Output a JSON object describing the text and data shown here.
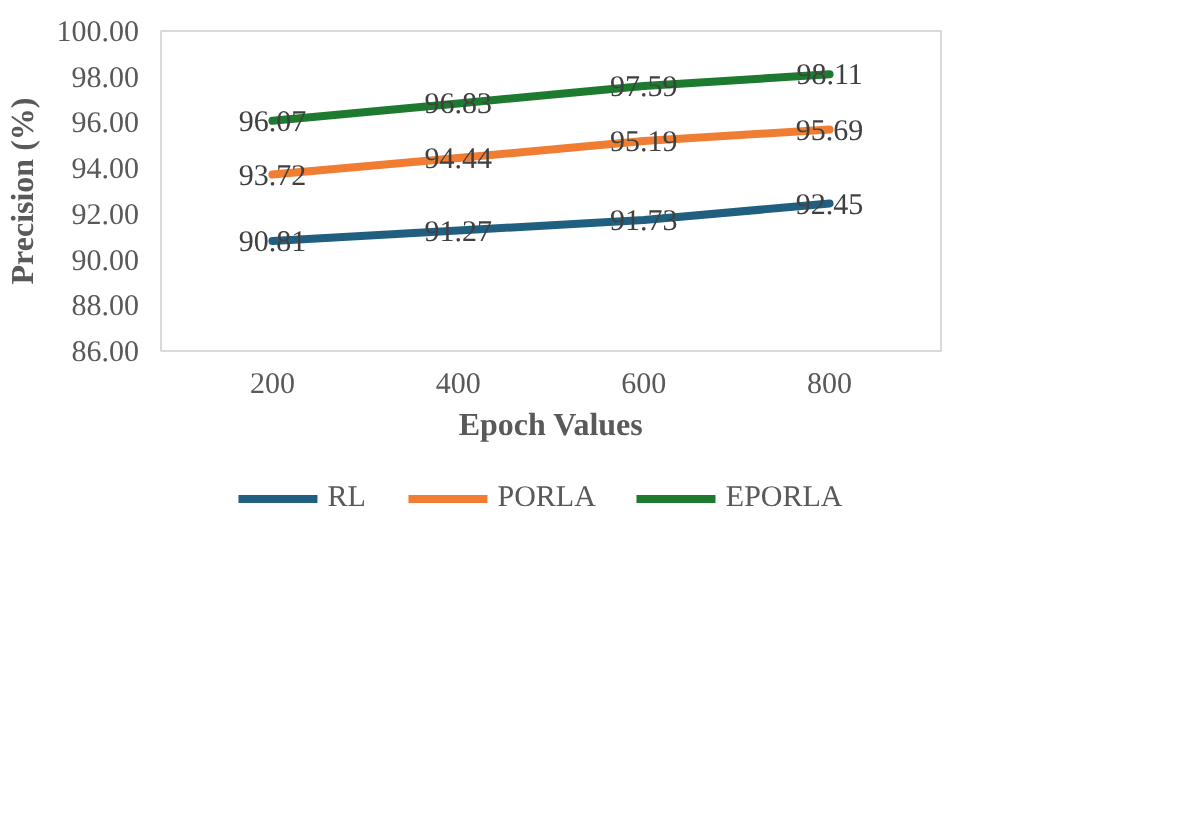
{
  "chart_data": {
    "type": "line",
    "ylabel": "Precision (%)",
    "xlabel": "Epoch Values",
    "categories": [
      "200",
      "400",
      "600",
      "800"
    ],
    "series": [
      {
        "name": "RL",
        "color": "#215f80",
        "values": [
          90.81,
          91.27,
          91.73,
          92.45
        ]
      },
      {
        "name": "PORLA",
        "color": "#f07d32",
        "values": [
          93.72,
          94.44,
          95.19,
          95.69
        ]
      },
      {
        "name": "EPORLA",
        "color": "#1e7a2e",
        "values": [
          96.07,
          96.83,
          97.59,
          98.11
        ]
      }
    ],
    "ylim": [
      86,
      100
    ],
    "yticks": [
      {
        "value": 86,
        "label": "86.00"
      },
      {
        "value": 88,
        "label": "88.00"
      },
      {
        "value": 90,
        "label": "90.00"
      },
      {
        "value": 92,
        "label": "92.00"
      },
      {
        "value": 94,
        "label": "94.00"
      },
      {
        "value": 96,
        "label": "96.00"
      },
      {
        "value": 98,
        "label": "98.00"
      },
      {
        "value": 100,
        "label": "100.00"
      }
    ],
    "data_labels": true,
    "legend": "bottom",
    "marker": "none",
    "line_style": "solid"
  }
}
